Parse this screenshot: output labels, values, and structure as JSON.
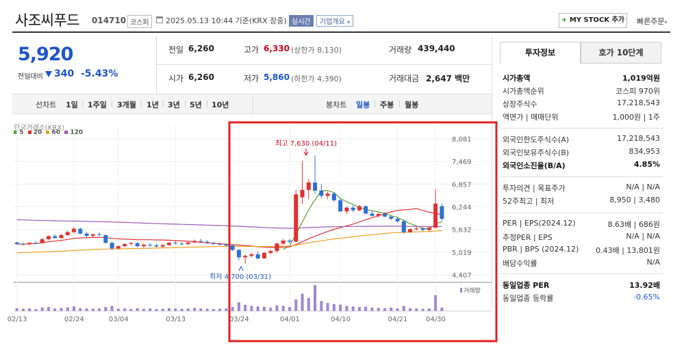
{
  "header": {
    "name": "사조씨푸드",
    "code": "014710",
    "market": "코스피",
    "datetime": "2025.05.13 10:44 기준(KRX 장중)",
    "live": "실시간",
    "corp_info": "기업개요",
    "mystock": "MY STOCK 추가",
    "quick_order": "빠른주문"
  },
  "price": {
    "current": "5,920",
    "change_label": "전일대비",
    "change": "340",
    "rate": "-5.43%"
  },
  "stats": {
    "prev_label": "전일",
    "prev": "6,260",
    "high_label": "고가",
    "high": "6,330",
    "upper_limit": "(상한가 8,130)",
    "volume_label": "거래량",
    "volume": "439,440",
    "open_label": "시가",
    "open": "6,260",
    "low_label": "저가",
    "low": "5,860",
    "lower_limit": "(하한가 4,390)",
    "amount_label": "거래대금",
    "amount": "2,647 백만"
  },
  "periods": {
    "line_label": "선차트",
    "line": [
      "1일",
      "1주일",
      "3개월",
      "1년",
      "3년",
      "5년",
      "10년"
    ],
    "candle_label": "봉차트",
    "candle": [
      "일봉",
      "주봉",
      "월봉"
    ],
    "selected": "일봉"
  },
  "chart": {
    "source": "한국거래소(KRX)",
    "ma": [
      {
        "label": "5",
        "color": "#5aa02c"
      },
      {
        "label": "20",
        "color": "#e03030"
      },
      {
        "label": "60",
        "color": "#f0a020"
      },
      {
        "label": "120",
        "color": "#9b59b6"
      }
    ],
    "high_annot": "최고 7,630 (04/11)",
    "low_annot": "최저 4,700 (03/31)",
    "volume_label": "거래량",
    "up_color": "#e03030",
    "down_color": "#2f6fd6"
  },
  "chart_data": {
    "type": "candlestick",
    "y_ticks": [
      8081,
      7469,
      6857,
      6244,
      5632,
      5019,
      4407
    ],
    "ylim": [
      4407,
      8081
    ],
    "x_tick_labels": [
      "02/13",
      "02/24",
      "03/04",
      "03/13",
      "03/24",
      "04/01",
      "04/10",
      "04/21",
      "04/30"
    ],
    "candles": [
      [
        5280,
        5300,
        5220,
        5240
      ],
      [
        5240,
        5280,
        5200,
        5230
      ],
      [
        5230,
        5290,
        5210,
        5270
      ],
      [
        5270,
        5310,
        5240,
        5260
      ],
      [
        5260,
        5400,
        5250,
        5370
      ],
      [
        5370,
        5480,
        5340,
        5450
      ],
      [
        5450,
        5500,
        5380,
        5400
      ],
      [
        5400,
        5520,
        5380,
        5480
      ],
      [
        5480,
        5600,
        5460,
        5560
      ],
      [
        5560,
        5700,
        5520,
        5650
      ],
      [
        5650,
        5680,
        5500,
        5520
      ],
      [
        5520,
        5560,
        5420,
        5460
      ],
      [
        5460,
        5520,
        5400,
        5500
      ],
      [
        5500,
        5560,
        5460,
        5480
      ],
      [
        5480,
        5490,
        5250,
        5270
      ],
      [
        5270,
        5300,
        5080,
        5120
      ],
      [
        5120,
        5200,
        5100,
        5180
      ],
      [
        5180,
        5260,
        5150,
        5240
      ],
      [
        5240,
        5300,
        5200,
        5260
      ],
      [
        5260,
        5290,
        5150,
        5180
      ],
      [
        5180,
        5250,
        5120,
        5220
      ],
      [
        5220,
        5260,
        5160,
        5200
      ],
      [
        5200,
        5250,
        5150,
        5170
      ],
      [
        5170,
        5230,
        5130,
        5210
      ],
      [
        5210,
        5300,
        5190,
        5270
      ],
      [
        5270,
        5320,
        5230,
        5250
      ],
      [
        5250,
        5290,
        5200,
        5240
      ],
      [
        5240,
        5300,
        5210,
        5280
      ],
      [
        5280,
        5360,
        5260,
        5320
      ],
      [
        5320,
        5380,
        5280,
        5300
      ],
      [
        5300,
        5340,
        5250,
        5270
      ],
      [
        5270,
        5300,
        5220,
        5240
      ],
      [
        5240,
        5280,
        5200,
        5230
      ],
      [
        5230,
        5260,
        5180,
        5200
      ],
      [
        5200,
        5220,
        5050,
        5080
      ],
      [
        5080,
        5100,
        4800,
        4880
      ],
      [
        4880,
        4950,
        4700,
        4920
      ],
      [
        4920,
        5000,
        4880,
        4960
      ],
      [
        4960,
        5040,
        4820,
        4850
      ],
      [
        4850,
        5020,
        4840,
        5000
      ],
      [
        5000,
        5080,
        4960,
        5050
      ],
      [
        5050,
        5280,
        5000,
        5250
      ],
      [
        5250,
        5380,
        5220,
        5330
      ],
      [
        5330,
        5380,
        5260,
        5300
      ],
      [
        5300,
        6700,
        5290,
        6580
      ],
      [
        6500,
        7480,
        6320,
        6700
      ],
      [
        6700,
        7000,
        6450,
        6900
      ],
      [
        6900,
        7630,
        6600,
        6680
      ],
      [
        6680,
        6850,
        6480,
        6540
      ],
      [
        6540,
        6650,
        6450,
        6600
      ],
      [
        6600,
        6640,
        6380,
        6420
      ],
      [
        6420,
        6480,
        6100,
        6120
      ],
      [
        6120,
        6250,
        6050,
        6220
      ],
      [
        6220,
        6280,
        6100,
        6150
      ],
      [
        6150,
        6300,
        6120,
        6260
      ],
      [
        6260,
        6280,
        6040,
        6060
      ],
      [
        6060,
        6120,
        5980,
        6000
      ],
      [
        6000,
        6080,
        5950,
        6050
      ],
      [
        6050,
        6100,
        5960,
        5980
      ],
      [
        5980,
        6000,
        5880,
        5920
      ],
      [
        5920,
        5960,
        5820,
        5850
      ],
      [
        5850,
        5900,
        5520,
        5560
      ],
      [
        5560,
        5660,
        5540,
        5640
      ],
      [
        5640,
        5700,
        5600,
        5660
      ],
      [
        5660,
        5680,
        5580,
        5620
      ],
      [
        5620,
        5720,
        5560,
        5680
      ],
      [
        5680,
        6720,
        5660,
        6330
      ],
      [
        6260,
        6330,
        5860,
        5920
      ]
    ],
    "volumes": [
      10,
      8,
      9,
      7,
      12,
      14,
      9,
      11,
      13,
      16,
      10,
      9,
      8,
      9,
      14,
      18,
      8,
      9,
      7,
      10,
      8,
      9,
      7,
      8,
      10,
      9,
      8,
      9,
      11,
      9,
      8,
      7,
      8,
      9,
      14,
      30,
      22,
      18,
      16,
      15,
      12,
      20,
      18,
      14,
      40,
      60,
      45,
      90,
      35,
      28,
      24,
      22,
      18,
      16,
      14,
      15,
      12,
      11,
      10,
      12,
      9,
      18,
      10,
      9,
      8,
      9,
      55,
      12
    ]
  },
  "right_panel": {
    "tab_invest": "투자정보",
    "tab_hoga": "호가 10단계",
    "rows1": [
      {
        "label": "시가총액",
        "value": "1,019억원",
        "bold": true
      },
      {
        "label": "시가총액순위",
        "value": "코스피 970위"
      },
      {
        "label": "상장주식수",
        "value": "17,218,543"
      },
      {
        "label": "액면가 | 매매단위",
        "value": "1,000원 | 1주"
      }
    ],
    "rows2": [
      {
        "label": "외국인한도주식수(A)",
        "value": "17,218,543"
      },
      {
        "label": "외국인보유주식수(B)",
        "value": "834,953"
      },
      {
        "label": "외국인소진율(B/A)",
        "value": "4.85%",
        "bold": true
      }
    ],
    "rows3": [
      {
        "label": "투자의견 | 목표주가",
        "value": "N/A | N/A"
      },
      {
        "label": "52주최고 | 최저",
        "value": "8,950 | 3,480"
      }
    ],
    "rows4": [
      {
        "label": "PER | EPS(2024.12)",
        "value": "8.63배 | 686원"
      },
      {
        "label": "추정PER | EPS",
        "value": "N/A | N/A"
      },
      {
        "label": "PBR | BPS (2024.12)",
        "value": "0.43배 | 13,801원"
      },
      {
        "label": "배당수익률",
        "value": "N/A"
      }
    ],
    "rows5": [
      {
        "label": "동일업종 PER",
        "value": "13.92배",
        "bold": true
      },
      {
        "label": "동일업종 등락률",
        "value": "-0.65%"
      }
    ]
  }
}
